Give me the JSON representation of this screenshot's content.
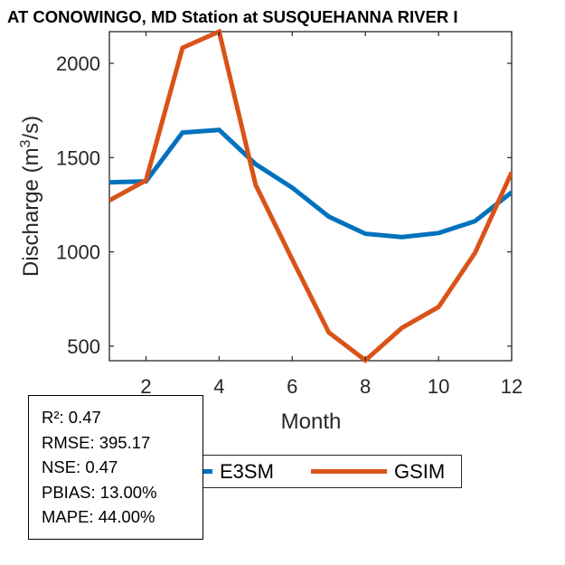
{
  "title": "AT CONOWINGO, MD  Station at  SUSQUEHANNA RIVER  I",
  "chart_data": {
    "type": "line",
    "title": "AT CONOWINGO, MD  Station at  SUSQUEHANNA RIVER",
    "xlabel": "Month",
    "ylabel_prefix": "Discharge (m",
    "ylabel_sup": "3",
    "ylabel_suffix": "/s)",
    "xlim": [
      1,
      12
    ],
    "ylim": [
      423,
      2168
    ],
    "xticks": [
      2,
      4,
      6,
      8,
      10,
      12
    ],
    "yticks": [
      500,
      1000,
      1500,
      2000
    ],
    "grid": false,
    "legend_position": "bottom-center",
    "x": [
      1,
      2,
      3,
      4,
      5,
      6,
      7,
      8,
      9,
      10,
      11,
      12
    ],
    "series": [
      {
        "name": "E3SM",
        "color": "#0072BD",
        "values": [
          1369,
          1374,
          1633,
          1647,
          1465,
          1340,
          1187,
          1096,
          1079,
          1100,
          1163,
          1316
        ]
      },
      {
        "name": "GSIM",
        "color": "#D95319",
        "values": [
          1273,
          1379,
          2082,
          2168,
          1355,
          960,
          573,
          425,
          597,
          708,
          995,
          1422
        ]
      }
    ]
  },
  "legend": {
    "items": [
      {
        "label": "E3SM",
        "color": "#0072BD"
      },
      {
        "label": "GSIM",
        "color": "#D95319"
      }
    ]
  },
  "stats": {
    "r2": "R²: 0.47",
    "rmse": "RMSE: 395.17",
    "nse": "NSE: 0.47",
    "pbias": "PBIAS: 13.00%",
    "mape": "MAPE: 44.00%"
  }
}
